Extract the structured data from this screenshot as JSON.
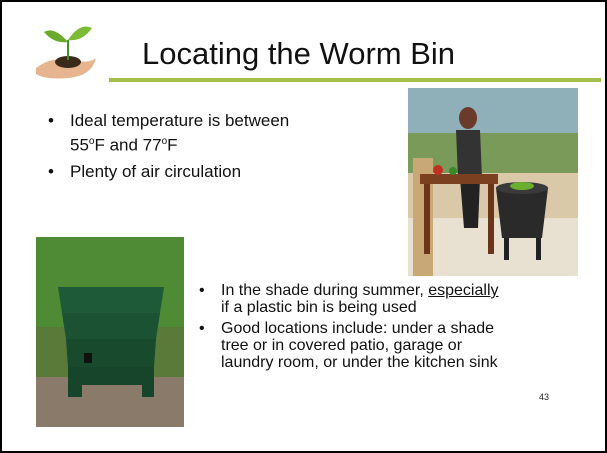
{
  "slide": {
    "title": "Locating the Worm Bin",
    "bullets_top": [
      [
        "Ideal temperature is between",
        "55",
        "o",
        "F and 77",
        "o",
        "F"
      ],
      [
        "Plenty of air circulation"
      ]
    ],
    "bullets_bottom": [
      [
        "In the shade during summer, ",
        "especially",
        "if a plastic bin is being used"
      ],
      [
        "Good locations include: under a shade",
        "tree or in covered patio, garage or",
        "laundry room, or under the kitchen sink"
      ]
    ],
    "page_number": "43"
  }
}
